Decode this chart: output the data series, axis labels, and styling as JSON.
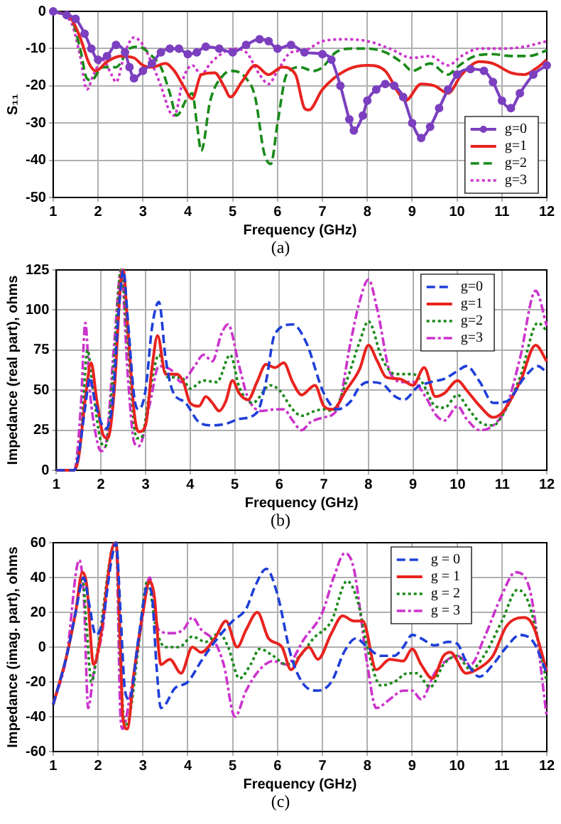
{
  "chart_data": [
    {
      "type": "line",
      "xlabel": "Frequency (GHz)",
      "ylabel": "S₁₁",
      "annotations": [
        "(a)"
      ],
      "xlim": [
        1,
        12
      ],
      "xticks": [
        1,
        2,
        3,
        4,
        5,
        6,
        7,
        8,
        9,
        10,
        11,
        12
      ],
      "ylim": [
        -50,
        0
      ],
      "yticks": [
        -50,
        -40,
        -30,
        -20,
        -10,
        0
      ],
      "grid": true,
      "legend": "bottom right",
      "series": [
        {
          "name": "g=0",
          "color": "#7b3fbf",
          "marker": "circle",
          "line_style": "solid",
          "x": [
            1,
            1.3,
            1.5,
            1.7,
            1.85,
            2,
            2.2,
            2.4,
            2.6,
            2.7,
            2.8,
            3,
            3.2,
            3.4,
            3.6,
            3.8,
            4,
            4.2,
            4.4,
            4.7,
            5,
            5.3,
            5.6,
            5.8,
            6,
            6.3,
            6.6,
            7,
            7.2,
            7.4,
            7.6,
            7.7,
            7.9,
            8,
            8.2,
            8.4,
            8.6,
            8.8,
            9,
            9.2,
            9.4,
            9.6,
            9.8,
            10,
            10.3,
            10.6,
            10.8,
            11,
            11.2,
            11.4,
            11.7,
            12
          ],
          "values": [
            0,
            -1,
            -2,
            -6,
            -10,
            -13,
            -12,
            -9,
            -11,
            -15,
            -18,
            -16,
            -14,
            -11,
            -10,
            -10,
            -11.5,
            -11,
            -9.5,
            -10,
            -11,
            -9,
            -7.5,
            -8,
            -10,
            -9,
            -11,
            -11.5,
            -13,
            -20,
            -29,
            -32,
            -28,
            -24,
            -21,
            -19.5,
            -20,
            -23,
            -30,
            -34,
            -31,
            -26,
            -21,
            -17,
            -15.5,
            -16,
            -19,
            -24,
            -26,
            -22,
            -17,
            -14.5
          ]
        },
        {
          "name": "g=1",
          "color": "#e8231f",
          "marker": "none",
          "line_style": "solid",
          "x": [
            1,
            1.4,
            1.6,
            1.8,
            1.95,
            2.2,
            2.5,
            2.8,
            3,
            3.2,
            3.5,
            3.7,
            3.9,
            4.1,
            4.3,
            4.6,
            4.8,
            4.95,
            5.2,
            5.5,
            5.8,
            6.1,
            6.4,
            6.6,
            6.7,
            7,
            7.5,
            8,
            8.4,
            8.7,
            8.85,
            9.2,
            9.5,
            9.8,
            10.1,
            10.5,
            10.8,
            11.2,
            11.5,
            11.8,
            12
          ],
          "values": [
            0,
            -2,
            -7,
            -14,
            -16,
            -13.5,
            -12,
            -12.5,
            -14.5,
            -15,
            -14,
            -16,
            -20,
            -23.5,
            -17,
            -16.5,
            -20,
            -23,
            -19,
            -14.5,
            -17,
            -15,
            -17,
            -26,
            -26.5,
            -21,
            -16,
            -14.5,
            -16,
            -22,
            -24,
            -19.5,
            -20,
            -22,
            -17,
            -13.5,
            -14,
            -16.5,
            -17,
            -15,
            -13
          ]
        },
        {
          "name": "g=2",
          "color": "#1a8a1a",
          "marker": "none",
          "line_style": "dashed",
          "x": [
            1,
            1.4,
            1.6,
            1.75,
            1.85,
            2.1,
            2.4,
            2.7,
            2.9,
            3.2,
            3.4,
            3.6,
            3.75,
            4,
            4.1,
            4.2,
            4.3,
            4.5,
            4.8,
            5,
            5.3,
            5.5,
            5.7,
            5.85,
            6,
            6.2,
            6.5,
            6.8,
            7,
            7.3,
            7.7,
            8,
            8.4,
            8.8,
            9,
            9.4,
            9.8,
            10,
            10.4,
            10.8,
            11.2,
            11.6,
            12
          ],
          "values": [
            0,
            -2,
            -10,
            -18,
            -18.5,
            -15,
            -15,
            -10,
            -9.5,
            -12,
            -15,
            -22,
            -28,
            -23,
            -22,
            -30,
            -37.5,
            -24,
            -17,
            -16,
            -18,
            -23,
            -38,
            -41,
            -30,
            -17,
            -15,
            -16,
            -15,
            -11,
            -10,
            -10,
            -11,
            -14,
            -16,
            -14,
            -17,
            -15,
            -12,
            -11.5,
            -12,
            -12,
            -10.5
          ]
        },
        {
          "name": "g=3",
          "color": "#cc33cc",
          "marker": "none",
          "line_style": "dotted",
          "x": [
            1,
            1.4,
            1.6,
            1.75,
            1.9,
            2.1,
            2.3,
            2.4,
            2.6,
            2.8,
            3,
            3.2,
            3.4,
            3.6,
            3.7,
            3.9,
            4.1,
            4.3,
            4.5,
            4.8,
            5,
            5.3,
            5.6,
            5.8,
            6,
            6.3,
            6.6,
            7,
            7.5,
            8,
            8.5,
            9,
            9.4,
            9.8,
            10.1,
            10.5,
            11,
            11.5,
            12
          ],
          "values": [
            0,
            -3,
            -12,
            -21,
            -17,
            -13,
            -17,
            -19,
            -11,
            -7,
            -9,
            -14,
            -20,
            -27,
            -28,
            -18,
            -14.5,
            -17,
            -14,
            -11,
            -10,
            -11,
            -17,
            -19.5,
            -16,
            -11,
            -10.5,
            -8,
            -7.5,
            -8,
            -10,
            -12.5,
            -12,
            -14.5,
            -12,
            -10,
            -10,
            -9.5,
            -8
          ]
        }
      ]
    },
    {
      "type": "line",
      "xlabel": "Frequency (GHz)",
      "ylabel": "Impedance (real part), ohms",
      "annotations": [
        "(b)"
      ],
      "xlim": [
        1,
        12
      ],
      "xticks": [
        1,
        2,
        3,
        4,
        5,
        6,
        7,
        8,
        9,
        10,
        11,
        12
      ],
      "ylim": [
        0,
        125
      ],
      "yticks": [
        0,
        25,
        50,
        75,
        100,
        125
      ],
      "grid": true,
      "legend": "top right",
      "series": [
        {
          "name": "g=0",
          "color": "#1f3fd8",
          "marker": "none",
          "line_style": "dashed",
          "x": [
            1,
            1.4,
            1.5,
            1.65,
            1.75,
            1.85,
            2,
            2.1,
            2.25,
            2.4,
            2.5,
            2.6,
            2.75,
            2.85,
            3,
            3.15,
            3.3,
            3.45,
            3.6,
            3.9,
            4.2,
            4.5,
            4.8,
            5.1,
            5.5,
            5.7,
            5.9,
            6.3,
            6.6,
            7,
            7.3,
            7.6,
            7.8,
            8,
            8.3,
            8.6,
            8.8,
            9.1,
            9.4,
            9.7,
            10,
            10.2,
            10.5,
            10.8,
            11.1,
            11.5,
            11.8,
            12
          ],
          "values": [
            0,
            0,
            10,
            40,
            58,
            45,
            30,
            26,
            40,
            100,
            125,
            95,
            45,
            38,
            50,
            90,
            105,
            70,
            50,
            42,
            30,
            28,
            29,
            32,
            36,
            55,
            85,
            91,
            80,
            48,
            38,
            43,
            52,
            55,
            54,
            46,
            44,
            52,
            55,
            57,
            62,
            65,
            55,
            42,
            43,
            58,
            65,
            61
          ]
        },
        {
          "name": "g=1",
          "color": "#e8231f",
          "marker": "none",
          "line_style": "solid",
          "x": [
            1,
            1.4,
            1.5,
            1.65,
            1.78,
            1.9,
            2.05,
            2.15,
            2.3,
            2.45,
            2.5,
            2.6,
            2.75,
            2.85,
            3,
            3.15,
            3.27,
            3.45,
            3.7,
            3.85,
            4,
            4.2,
            4.35,
            4.5,
            4.65,
            4.8,
            4.95,
            5.1,
            5.3,
            5.5,
            5.7,
            5.9,
            6.1,
            6.3,
            6.5,
            6.8,
            7,
            7.2,
            7.5,
            7.8,
            8,
            8.2,
            8.4,
            8.7,
            9,
            9.25,
            9.5,
            9.7,
            10,
            10.2,
            10.5,
            10.8,
            11,
            11.4,
            11.75,
            12
          ],
          "values": [
            0,
            0,
            8,
            45,
            67,
            45,
            22,
            20,
            50,
            120,
            125,
            90,
            35,
            24,
            28,
            65,
            84,
            60,
            60,
            55,
            42,
            40,
            46,
            42,
            37,
            43,
            56,
            48,
            44,
            55,
            66,
            64,
            67,
            55,
            47,
            53,
            40,
            38,
            50,
            63,
            78,
            68,
            58,
            57,
            53,
            64,
            46,
            48,
            56,
            50,
            40,
            33,
            36,
            55,
            78,
            68
          ]
        },
        {
          "name": "g=2",
          "color": "#1a8a1a",
          "marker": "none",
          "line_style": "dotted",
          "x": [
            1,
            1.4,
            1.55,
            1.7,
            1.8,
            2,
            2.1,
            2.3,
            2.45,
            2.6,
            2.8,
            2.9,
            3.1,
            3.3,
            3.5,
            3.8,
            4,
            4.3,
            4.6,
            4.9,
            5.1,
            5.4,
            5.8,
            6,
            6.3,
            6.5,
            6.8,
            7,
            7.2,
            7.5,
            7.8,
            8,
            8.3,
            8.6,
            9,
            9.2,
            9.5,
            9.7,
            10,
            10.2,
            10.5,
            10.8,
            11,
            11.4,
            11.8,
            12
          ],
          "values": [
            0,
            0,
            20,
            75,
            55,
            18,
            15,
            70,
            125,
            80,
            20,
            20,
            50,
            72,
            58,
            58,
            51,
            56,
            55,
            72,
            52,
            42,
            53,
            50,
            38,
            34,
            37,
            38,
            37,
            55,
            80,
            93,
            70,
            60,
            60,
            55,
            40,
            39,
            47,
            40,
            30,
            28,
            34,
            58,
            92,
            87
          ]
        },
        {
          "name": "g=3",
          "color": "#cc33cc",
          "marker": "none",
          "line_style": "dashdot",
          "x": [
            1,
            1.4,
            1.55,
            1.65,
            1.75,
            1.9,
            2,
            2.1,
            2.3,
            2.45,
            2.6,
            2.75,
            2.85,
            3.1,
            3.3,
            3.6,
            3.8,
            4.1,
            4.3,
            4.5,
            4.7,
            4.85,
            5.1,
            5.3,
            5.6,
            5.9,
            6.1,
            6.3,
            6.5,
            6.7,
            7,
            7.3,
            7.6,
            7.8,
            8,
            8.2,
            8.5,
            8.8,
            9,
            9.3,
            9.5,
            9.7,
            10,
            10.2,
            10.5,
            10.8,
            11.1,
            11.4,
            11.75,
            12
          ],
          "values": [
            0,
            0,
            40,
            92,
            50,
            20,
            12,
            15,
            80,
            125,
            60,
            17,
            15,
            42,
            65,
            62,
            55,
            65,
            72,
            68,
            85,
            91,
            65,
            45,
            37,
            38,
            38,
            31,
            25,
            30,
            33,
            38,
            80,
            105,
            119,
            100,
            60,
            55,
            55,
            45,
            35,
            31,
            40,
            32,
            25,
            28,
            40,
            70,
            112,
            90
          ]
        }
      ]
    },
    {
      "type": "line",
      "xlabel": "Frequency (GHz)",
      "ylabel": "Impedance (imag. part), ohms",
      "annotations": [
        "(c)"
      ],
      "xlim": [
        1,
        12
      ],
      "xticks": [
        1,
        2,
        3,
        4,
        5,
        6,
        7,
        8,
        9,
        10,
        11,
        12
      ],
      "ylim": [
        -60,
        60
      ],
      "yticks": [
        -60,
        -40,
        -20,
        0,
        20,
        40,
        60
      ],
      "grid": true,
      "legend": "top right",
      "series": [
        {
          "name": "g = 0",
          "color": "#1f3fd8",
          "marker": "none",
          "line_style": "dashed",
          "x": [
            1,
            1.3,
            1.5,
            1.68,
            1.8,
            1.95,
            2.1,
            2.3,
            2.4,
            2.5,
            2.6,
            2.7,
            2.9,
            3.1,
            3.2,
            3.3,
            3.4,
            3.5,
            3.7,
            4,
            4.3,
            4.6,
            5,
            5.3,
            5.5,
            5.75,
            6,
            6.3,
            6.6,
            6.9,
            7.2,
            7.5,
            7.75,
            8,
            8.3,
            8.6,
            8.8,
            9,
            9.2,
            9.5,
            9.8,
            10,
            10.2,
            10.5,
            10.8,
            11.1,
            11.4,
            11.7,
            12
          ],
          "values": [
            -33,
            -5,
            20,
            40,
            25,
            7,
            15,
            50,
            60,
            20,
            -25,
            -30,
            5,
            35,
            30,
            -10,
            -35,
            -33,
            -24,
            -20,
            -8,
            3,
            15,
            22,
            35,
            45,
            30,
            -5,
            -22,
            -25,
            -20,
            -2,
            5,
            0,
            -5,
            -5,
            0,
            7,
            5,
            1,
            3,
            2,
            -8,
            -17,
            -10,
            0,
            7,
            3,
            -15
          ]
        },
        {
          "name": "g = 1",
          "color": "#e8231f",
          "marker": "none",
          "line_style": "solid",
          "x": [
            1,
            1.3,
            1.5,
            1.65,
            1.75,
            1.9,
            2.05,
            2.3,
            2.4,
            2.5,
            2.55,
            2.65,
            2.8,
            3,
            3.15,
            3.25,
            3.4,
            3.6,
            3.85,
            4.1,
            4.3,
            4.6,
            4.85,
            5.1,
            5.3,
            5.55,
            5.8,
            6.1,
            6.3,
            6.5,
            6.7,
            6.9,
            7.2,
            7.45,
            7.7,
            7.9,
            8.2,
            8.5,
            8.8,
            9,
            9.2,
            9.45,
            9.7,
            9.85,
            10.2,
            10.5,
            10.8,
            11.1,
            11.5,
            11.7,
            12
          ],
          "values": [
            -33,
            -5,
            20,
            43,
            35,
            -10,
            5,
            55,
            60,
            0,
            -40,
            -47,
            -15,
            20,
            38,
            30,
            -10,
            -7,
            -15,
            0,
            -3,
            5,
            15,
            0,
            10,
            20,
            5,
            0,
            -13,
            -5,
            0,
            -7,
            8,
            18,
            15,
            15,
            -13,
            -7,
            -8,
            -1,
            -10,
            -18,
            -5,
            -3,
            -15,
            -12,
            -5,
            12,
            17,
            12,
            -14
          ]
        },
        {
          "name": "g = 2",
          "color": "#1a8a1a",
          "marker": "none",
          "line_style": "dotted",
          "x": [
            1,
            1.3,
            1.5,
            1.65,
            1.75,
            1.85,
            2,
            2.3,
            2.4,
            2.5,
            2.6,
            2.7,
            2.9,
            3.1,
            3.3,
            3.5,
            3.8,
            4.1,
            4.4,
            4.7,
            4.9,
            5.15,
            5.4,
            5.6,
            5.9,
            6.2,
            6.5,
            6.8,
            7.2,
            7.55,
            7.8,
            8,
            8.3,
            8.6,
            8.9,
            9.1,
            9.4,
            9.7,
            10,
            10.3,
            10.6,
            11,
            11.35,
            11.6,
            12
          ],
          "values": [
            -33,
            -5,
            20,
            40,
            10,
            -20,
            0,
            55,
            60,
            -10,
            -45,
            -40,
            0,
            38,
            10,
            0,
            0,
            6,
            3,
            8,
            0,
            -18,
            -10,
            -1,
            -5,
            -10,
            -5,
            5,
            15,
            38,
            25,
            0,
            -22,
            -20,
            -15,
            -15,
            -23,
            -10,
            -5,
            -13,
            -5,
            15,
            33,
            25,
            -20
          ]
        },
        {
          "name": "g = 3",
          "color": "#cc33cc",
          "marker": "none",
          "line_style": "dashdot",
          "x": [
            1,
            1.3,
            1.58,
            1.68,
            1.78,
            1.9,
            2.1,
            2.3,
            2.4,
            2.5,
            2.55,
            2.7,
            2.95,
            3.15,
            3.35,
            3.6,
            3.9,
            4.1,
            4.3,
            4.6,
            4.8,
            5.05,
            5.3,
            5.6,
            5.9,
            6.2,
            6.6,
            7,
            7.25,
            7.5,
            7.7,
            8,
            8.2,
            8.5,
            8.8,
            9,
            9.2,
            9.5,
            9.8,
            10,
            10.3,
            10.6,
            11,
            11.3,
            11.6,
            12
          ],
          "values": [
            -33,
            -5,
            50,
            30,
            -35,
            -15,
            10,
            55,
            60,
            -40,
            -47,
            -30,
            10,
            40,
            10,
            8,
            10,
            17,
            10,
            3,
            -10,
            -40,
            -25,
            -13,
            -8,
            -10,
            5,
            20,
            40,
            54,
            45,
            -10,
            -35,
            -30,
            -25,
            -25,
            -30,
            -15,
            -7,
            -5,
            -10,
            5,
            30,
            43,
            35,
            -40
          ]
        }
      ]
    }
  ]
}
